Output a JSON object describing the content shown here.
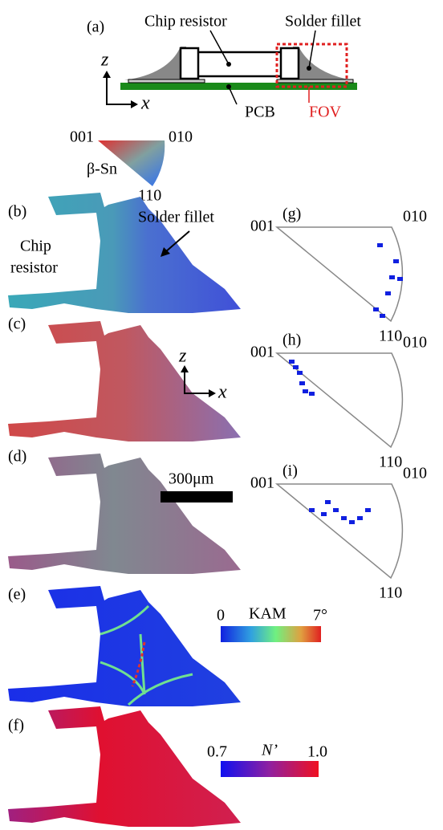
{
  "panel_a": {
    "label": "(a)",
    "chip_resistor": "Chip resistor",
    "solder_fillet": "Solder fillet",
    "axis_z": "z",
    "axis_x": "x",
    "pcb": "PCB",
    "fov": "FOV"
  },
  "key": {
    "corner_001": "001",
    "corner_010": "010",
    "corner_110": "110",
    "phase": "β-Sn"
  },
  "maps": [
    {
      "label": "(b)"
    },
    {
      "label": "(c)"
    },
    {
      "label": "(d)"
    },
    {
      "label": "(e)"
    },
    {
      "label": "(f)"
    }
  ],
  "map_b_annotations": {
    "chip_resistor": [
      "Chip",
      "resistor"
    ],
    "solder_fillet": "Solder fillet"
  },
  "axes_c": {
    "z": "z",
    "x": "x"
  },
  "scale_bar": "300μm",
  "kam_bar": {
    "min": "0",
    "title": "KAM",
    "max": "7°"
  },
  "n_bar": {
    "min": "0.7",
    "title": "N’",
    "max": "1.0"
  },
  "pole_figures": [
    {
      "label": "(g)",
      "corners": [
        "001",
        "010",
        "110"
      ]
    },
    {
      "label": "(h)",
      "corners": [
        "001",
        "010",
        "110"
      ]
    },
    {
      "label": "(i)",
      "corners": [
        "001",
        "010",
        "110"
      ]
    }
  ]
}
